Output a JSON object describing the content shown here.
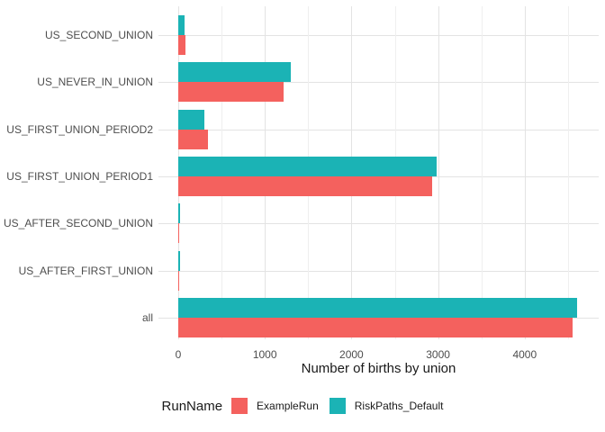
{
  "figure": {
    "background": "#FFFFFF"
  },
  "chart_data": {
    "type": "bar",
    "orientation": "horizontal",
    "title": "",
    "xlabel": "Number of births by union",
    "ylabel": "",
    "categories": [
      "US_SECOND_UNION",
      "US_NEVER_IN_UNION",
      "US_FIRST_UNION_PERIOD2",
      "US_FIRST_UNION_PERIOD1",
      "US_AFTER_SECOND_UNION",
      "US_AFTER_FIRST_UNION",
      "all"
    ],
    "series": [
      {
        "name": "ExampleRun",
        "color": "#F4615E",
        "values": [
          83,
          1215,
          338,
          2935,
          15,
          15,
          4550
        ]
      },
      {
        "name": "RiskPaths_Default",
        "color": "#1BB3B5",
        "values": [
          73,
          1300,
          303,
          2980,
          18,
          18,
          4610
        ]
      }
    ],
    "legend_title": "RunName",
    "legend_position": "bottom",
    "x_ticks": [
      0,
      1000,
      2000,
      3000,
      4000
    ],
    "x_tick_labels": [
      "0",
      "1000",
      "2000",
      "3000",
      "4000"
    ],
    "xlim": [
      0,
      4840
    ],
    "grid": true
  }
}
